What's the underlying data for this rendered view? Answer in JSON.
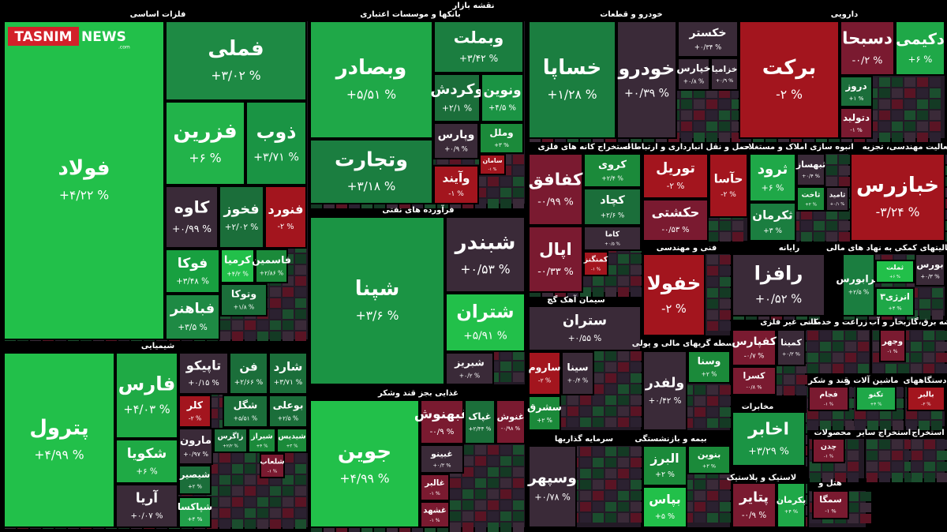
{
  "title": "نقشه بازار",
  "logo": "TASNIM",
  "logo2": "NEWS",
  "logo3": ".com",
  "sectors": [
    {
      "name": "فلزات اساسی",
      "tiles": [
        {
          "name": "فولاد",
          "change": "+۴/۲۲ %",
          "color": "#22c04a"
        },
        {
          "name": "فملی",
          "change": "+۳/۰۲ %",
          "color": "#1e8a44"
        },
        {
          "name": "فزرین",
          "change": "+۶ %",
          "color": "#22b34a"
        },
        {
          "name": "ذوب",
          "change": "+۳/۷۱ %",
          "color": "#1a9444"
        },
        {
          "name": "کاوه",
          "change": "+۰/۹۹ %",
          "color": "#3a2a38"
        },
        {
          "name": "فخوز",
          "change": "+۲/۰۲ %",
          "color": "#1b6e3a"
        },
        {
          "name": "فنورد",
          "change": "-۲ %",
          "color": "#a3151e"
        },
        {
          "name": "فوکا",
          "change": "+۳/۴۸ %",
          "color": "#18a040"
        },
        {
          "name": "کرمیا",
          "change": "+۴/۲ %",
          "color": "#22c04a"
        },
        {
          "name": "فاسمین",
          "change": "+۲/۸۶ %",
          "color": "#1b8a3a"
        },
        {
          "name": "فباهنر",
          "change": "+۳/۵ %",
          "color": "#1e8a44"
        },
        {
          "name": "وتوکا",
          "change": "+۱/۸ %",
          "color": "#1b6e3a"
        }
      ]
    },
    {
      "name": "شیمیایی",
      "tiles": [
        {
          "name": "پترول",
          "change": "+۴/۹۹ %",
          "color": "#22c04a"
        },
        {
          "name": "فارس",
          "change": "+۴/۰۳ %",
          "color": "#1faa45"
        },
        {
          "name": "شکویا",
          "change": "+۶ %",
          "color": "#1faa45"
        },
        {
          "name": "آریا",
          "change": "+۰/۰۷ %",
          "color": "#3a2a38"
        },
        {
          "name": "تاپیکو",
          "change": "+۰/۱۵ %",
          "color": "#3a2a38"
        },
        {
          "name": "فن",
          "change": "+۲/۶۶ %",
          "color": "#1b6e3a"
        },
        {
          "name": "شارد",
          "change": "+۳/۷۱ %",
          "color": "#1b6e3a"
        },
        {
          "name": "کلر",
          "change": "-۲ %",
          "color": "#a3151e"
        },
        {
          "name": "شگل",
          "change": "+۵/۵۱ %",
          "color": "#1b6e3a"
        },
        {
          "name": "بوعلی",
          "change": "+۲/۵ %",
          "color": "#1b6e3a"
        },
        {
          "name": "مارون",
          "change": "+۰/۹۷ %",
          "color": "#3a2a38"
        },
        {
          "name": "زاگرس",
          "change": "+۲/۲ %",
          "color": "#1b6e3a"
        },
        {
          "name": "شیراز",
          "change": "+۴ %",
          "color": "#1b8a3a"
        },
        {
          "name": "شیدیس",
          "change": "+۳ %",
          "color": "#1b8a3a"
        },
        {
          "name": "شیصیر",
          "change": "+۲ %",
          "color": "#1b6e3a"
        },
        {
          "name": "شپاکسا",
          "change": "+۴ %",
          "color": "#22a04a"
        },
        {
          "name": "شلعاب",
          "change": "-۱ %",
          "color": "#7a1a30"
        }
      ]
    },
    {
      "name": "بانکها و موسسات اعتباری",
      "tiles": [
        {
          "name": "وبصادر",
          "change": "+۵/۵۱ %",
          "color": "#1fa848"
        },
        {
          "name": "وتجارت",
          "change": "+۳/۱۸ %",
          "color": "#1b7e40"
        },
        {
          "name": "وبملت",
          "change": "+۳/۴۲ %",
          "color": "#1b7e40"
        },
        {
          "name": "وکردش",
          "change": "+۲/۱ %",
          "color": "#1b6e3a"
        },
        {
          "name": "ونوین",
          "change": "+۴/۵ %",
          "color": "#1b9444"
        },
        {
          "name": "وپارس",
          "change": "+۰/۹ %",
          "color": "#3a2a38"
        },
        {
          "name": "وملل",
          "change": "+۳ %",
          "color": "#1b8a3a"
        },
        {
          "name": "سامان",
          "change": "-۱ %",
          "color": "#a3151e"
        },
        {
          "name": "وآیند",
          "change": "-۱ %",
          "color": "#a3151e"
        }
      ]
    },
    {
      "name": "فرآورده های نفتی",
      "tiles": [
        {
          "name": "شپنا",
          "change": "+۳/۶ %",
          "color": "#1b9444"
        },
        {
          "name": "شبندر",
          "change": "+۰/۵۳ %",
          "color": "#3a2a38"
        },
        {
          "name": "شتران",
          "change": "+۵/۹۱ %",
          "color": "#22c04a"
        },
        {
          "name": "شبریز",
          "change": "+۰/۲ %",
          "color": "#3a2a38"
        }
      ]
    },
    {
      "name": "غذایی بجز قند وشکر",
      "tiles": [
        {
          "name": "جوین",
          "change": "+۴/۹۹ %",
          "color": "#22c04a"
        },
        {
          "name": "غبهنوش",
          "change": "-۰/۹ %",
          "color": "#7a1a30"
        },
        {
          "name": "غپاک",
          "change": "+۲/۴۴ %",
          "color": "#1b6e3a"
        },
        {
          "name": "غنوش",
          "change": "-۰/۹۸ %",
          "color": "#7a1a30"
        },
        {
          "name": "غبینو",
          "change": "+۰/۲ %",
          "color": "#3a2a38"
        },
        {
          "name": "غالبر",
          "change": "-۱ %",
          "color": "#7a1a30"
        },
        {
          "name": "غشهد",
          "change": "-۱ %",
          "color": "#7a1a30"
        }
      ]
    },
    {
      "name": "خودرو و قطعات",
      "tiles": [
        {
          "name": "خساپا",
          "change": "+۱/۲۸ %",
          "color": "#1b7e40"
        },
        {
          "name": "خودرو",
          "change": "+۰/۳۹ %",
          "color": "#3a2a38"
        },
        {
          "name": "خکستر",
          "change": "+۰/۳۴ %",
          "color": "#3a2a38"
        },
        {
          "name": "خپارس",
          "change": "+۰/۸ %",
          "color": "#3a2a38"
        },
        {
          "name": "خزامیا",
          "change": "+۰/۹ %",
          "color": "#3a2a38"
        }
      ]
    },
    {
      "name": "استخراج کانه های فلزی",
      "tiles": [
        {
          "name": "کفافق",
          "change": "-۰/۹۹ %",
          "color": "#7a1a30"
        },
        {
          "name": "کروی",
          "change": "+۲/۴ %",
          "color": "#1b8a3a"
        },
        {
          "name": "کچاد",
          "change": "+۲/۶ %",
          "color": "#1b6e3a"
        },
        {
          "name": "اپال",
          "change": "-۰/۳۳ %",
          "color": "#7a1a30"
        },
        {
          "name": "کاما",
          "change": "+۰/۵ %",
          "color": "#3a2a38"
        },
        {
          "name": "کمنگنز",
          "change": "-۱ %",
          "color": "#a3151e"
        }
      ]
    },
    {
      "name": "سیمان آهک گچ",
      "tiles": [
        {
          "name": "ستران",
          "change": "+۰/۵۵ %",
          "color": "#3a2a38"
        },
        {
          "name": "ساروم",
          "change": "-۲ %",
          "color": "#a3151e"
        },
        {
          "name": "سینا",
          "change": "+۰/۴ %",
          "color": "#3a2a38"
        },
        {
          "name": "سشرق",
          "change": "+۲ %",
          "color": "#1b8a3a"
        }
      ]
    },
    {
      "name": "سرمایه گذاریها",
      "tiles": [
        {
          "name": "وسپهر",
          "change": "+۰/۷۸ %",
          "color": "#3a2a38"
        }
      ]
    },
    {
      "name": "حمل و نقل انبارداری و ارتباطات",
      "tiles": [
        {
          "name": "توریل",
          "change": "-۲ %",
          "color": "#a3151e"
        },
        {
          "name": "حکشتی",
          "change": "-۰/۵۳ %",
          "color": "#7a1a30"
        },
        {
          "name": "حآسا",
          "change": "-۲ %",
          "color": "#a3151e"
        }
      ]
    },
    {
      "name": "دارویی",
      "tiles": [
        {
          "name": "برکت",
          "change": "-۲ %",
          "color": "#a3151e"
        },
        {
          "name": "دسبحا",
          "change": "-۰/۲ %",
          "color": "#7a1a30"
        },
        {
          "name": "دکیمی",
          "change": "+۶ %",
          "color": "#1fa848"
        },
        {
          "name": "دروز",
          "change": "+۱ %",
          "color": "#1b6e3a"
        },
        {
          "name": "دتولید",
          "change": "-۱ %",
          "color": "#7a1a30"
        }
      ]
    },
    {
      "name": "انبوه سازی املاک و مستغلات",
      "tiles": [
        {
          "name": "ثرود",
          "change": "+۶ %",
          "color": "#1fa848"
        },
        {
          "name": "ثکرمان",
          "change": "+۳ %",
          "color": "#1b7e40"
        },
        {
          "name": "ثبهساز",
          "change": "+۰/۴ %",
          "color": "#3a2a38"
        },
        {
          "name": "ثاخت",
          "change": "+۲ %",
          "color": "#1b8a3a"
        },
        {
          "name": "ثامید",
          "change": "+۰/۱ %",
          "color": "#3a2a38"
        }
      ]
    },
    {
      "name": "فعالیت مهندسی، تجزیه",
      "tiles": [
        {
          "name": "خبازرس",
          "change": "-۳/۲۴ %",
          "color": "#a3151e"
        }
      ]
    },
    {
      "name": "فنی و مهندسی",
      "tiles": [
        {
          "name": "خفولا",
          "change": "-۲ %",
          "color": "#a3151e"
        }
      ]
    },
    {
      "name": "رایانه",
      "tiles": [
        {
          "name": "رافزا",
          "change": "+۰/۵۲ %",
          "color": "#3a2a38"
        }
      ]
    },
    {
      "name": "فعالیتهای کمکی به نهاد های مالی",
      "tiles": [
        {
          "name": "فرابورس",
          "change": "+۲/۵ %",
          "color": "#1b7e40"
        },
        {
          "name": "بورس",
          "change": "+۰/۳ %",
          "color": "#3a2a38"
        },
        {
          "name": "ثملت",
          "change": "+۶ %",
          "color": "#22c04a"
        },
        {
          "name": "انرژی۳",
          "change": "+۴ %",
          "color": "#1fa848"
        }
      ]
    },
    {
      "name": "واسطه گریهای مالی و پولی",
      "tiles": [
        {
          "name": "ولفدر",
          "change": "+۰/۴۲ %",
          "color": "#3a2a38"
        },
        {
          "name": "وسنا",
          "change": "+۲ %",
          "color": "#1b8a3a"
        }
      ]
    },
    {
      "name": "کانی غیر فلزی",
      "tiles": [
        {
          "name": "کفپارس",
          "change": "-۰/۷ %",
          "color": "#7a1a30"
        },
        {
          "name": "کمینا",
          "change": "+۰/۲ %",
          "color": "#3a2a38"
        },
        {
          "name": "کسرا",
          "change": "-۰/۸ %",
          "color": "#7a1a30"
        }
      ]
    },
    {
      "name": "زراعت و خدمات",
      "tiles": []
    },
    {
      "name": "عرضه برق،گازبخار و آب",
      "tiles": [
        {
          "name": "وجهر",
          "change": "-۱ %",
          "color": "#7a1a30"
        }
      ]
    },
    {
      "name": "مخابرات",
      "tiles": [
        {
          "name": "اخابر",
          "change": "+۳/۲۹ %",
          "color": "#1b9444"
        }
      ]
    },
    {
      "name": "بیمه و بازنشستگی",
      "tiles": [
        {
          "name": "البرز",
          "change": "+۲ %",
          "color": "#1b8a3a"
        },
        {
          "name": "بنوین",
          "change": "+۲ %",
          "color": "#1b8a3a"
        },
        {
          "name": "بپاس",
          "change": "+۵ %",
          "color": "#22c04a"
        }
      ]
    },
    {
      "name": "لاستیک و پلاستیک",
      "tiles": [
        {
          "name": "پتایر",
          "change": "-۰/۹ %",
          "color": "#7a1a30"
        },
        {
          "name": "پکرمان",
          "change": "+۴ %",
          "color": "#1fa848"
        }
      ]
    },
    {
      "name": "قند و شکر",
      "tiles": [
        {
          "name": "فجام",
          "change": "-۱ %",
          "color": "#7a1a30"
        }
      ]
    },
    {
      "name": "ماشین آلات و",
      "tiles": [
        {
          "name": "تکنو",
          "change": "+۴ %",
          "color": "#1fa848"
        }
      ]
    },
    {
      "name": "دستگاههای",
      "tiles": [
        {
          "name": "بالبر",
          "change": "-۲ %",
          "color": "#a3151e"
        }
      ]
    },
    {
      "name": "محصولات",
      "tiles": [
        {
          "name": "چدن",
          "change": "-۱ %",
          "color": "#7a1a30"
        }
      ]
    },
    {
      "name": "استخراج سایر",
      "tiles": []
    },
    {
      "name": "استخراج",
      "tiles": []
    },
    {
      "name": "هتل و",
      "tiles": [
        {
          "name": "سمگا",
          "change": "-۱ %",
          "color": "#7a1a30"
        }
      ]
    }
  ]
}
